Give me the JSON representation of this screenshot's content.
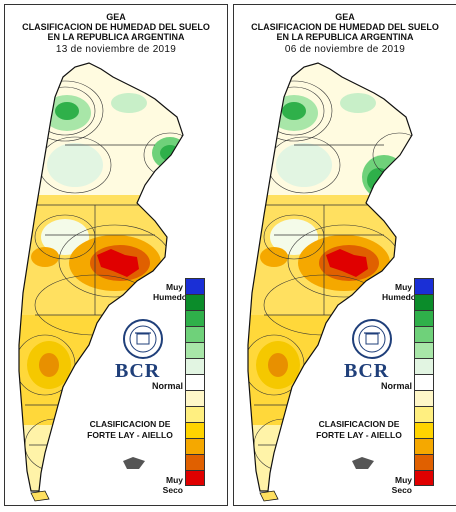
{
  "panels": [
    {
      "title_line1": "GEA",
      "title_line2": "CLASIFICACION DE HUMEDAD DEL SUELO",
      "title_line3": "EN LA REPUBLICA ARGENTINA",
      "date": "13 de noviembre de 2019",
      "logo_text": "BCR",
      "method_line1": "CLASIFICACION DE",
      "method_line2": "FORTE LAY - AIELLO",
      "legend_top": "Muy Humedo",
      "legend_mid": "Normal",
      "legend_bottom": "Muy Seco"
    },
    {
      "title_line1": "GEA",
      "title_line2": "CLASIFICACION DE HUMEDAD DEL SUELO",
      "title_line3": "EN LA REPUBLICA ARGENTINA",
      "date": "06 de noviembre de 2019",
      "logo_text": "BCR",
      "method_line1": "CLASIFICACION DE",
      "method_line2": "FORTE LAY - AIELLO",
      "legend_top": "Muy Humedo",
      "legend_mid": "Normal",
      "legend_bottom": "Muy Seco"
    }
  ],
  "legend_colors": [
    "#1a2fd6",
    "#0b8c2a",
    "#2fb04a",
    "#6fd17a",
    "#a8e6a8",
    "#e2f5e2",
    "#ffffff",
    "#fff7c8",
    "#ffef80",
    "#ffd400",
    "#f5a800",
    "#e06000",
    "#e00000"
  ]
}
